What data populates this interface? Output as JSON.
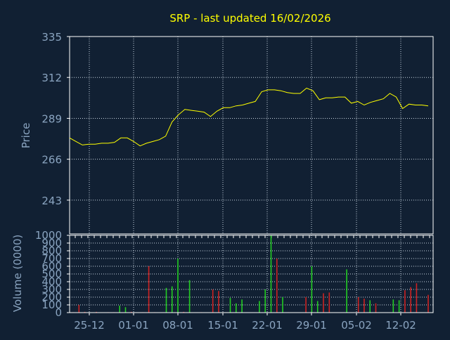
{
  "colors": {
    "background": "#112033",
    "grid": "#c8d4e0",
    "axis": "#ffffff",
    "title": "#ffff00",
    "label": "#8aa4c0",
    "price_line": "#ffff00",
    "volume_up": "#22cc22",
    "volume_down": "#cc2222"
  },
  "chart_data": [
    {
      "type": "line",
      "title": "SRP - last updated 16/02/2026",
      "ylabel": "Price",
      "xlabel": "",
      "ylim": [
        224,
        335
      ],
      "yticks": [
        335,
        312,
        289,
        266,
        243
      ],
      "x_tick_labels": [
        "25-12",
        "01-01",
        "08-01",
        "15-01",
        "22-01",
        "29-01",
        "05-02",
        "12-02"
      ],
      "grid": true,
      "series": [
        {
          "values": [
            278,
            276,
            274,
            274.5,
            274.5,
            275,
            275,
            275.5,
            278,
            278,
            276,
            273.5,
            275,
            276,
            277,
            279,
            287,
            291,
            294,
            293.5,
            293,
            292.5,
            290,
            293,
            295,
            295,
            296,
            296.5,
            297.5,
            298.5,
            304,
            305,
            305,
            304.5,
            303.5,
            303,
            303,
            306,
            304.5,
            299.5,
            300.5,
            300.5,
            301,
            301,
            297.5,
            298.5,
            296.5,
            298,
            299,
            300,
            303,
            301,
            294.5,
            297,
            296.5,
            296.5,
            296
          ]
        }
      ]
    },
    {
      "type": "bar",
      "ylabel": "Volume (0000)",
      "ylim": [
        0,
        1000
      ],
      "yticks": [
        1000,
        900,
        800,
        700,
        600,
        500,
        400,
        300,
        200,
        100,
        0
      ],
      "grid": true,
      "series": [
        {
          "values": [
            5,
            100,
            10,
            0,
            10,
            0,
            5,
            5,
            90,
            70,
            10,
            0,
            5,
            600,
            5,
            0,
            320,
            340,
            700,
            10,
            420,
            0,
            5,
            0,
            300,
            280,
            0,
            190,
            120,
            170,
            0,
            0,
            150,
            300,
            1000,
            700,
            200,
            5,
            0,
            0,
            200,
            600,
            150,
            250,
            260,
            0,
            0,
            560,
            0,
            200,
            180,
            160,
            120,
            0,
            0,
            170,
            160,
            290,
            330,
            380,
            0,
            230
          ],
          "direction": [
            "d",
            "d",
            "d",
            "u",
            "d",
            "u",
            "d",
            "d",
            "u",
            "u",
            "d",
            "u",
            "d",
            "d",
            "d",
            "u",
            "u",
            "u",
            "u",
            "d",
            "u",
            "u",
            "d",
            "u",
            "d",
            "d",
            "u",
            "u",
            "u",
            "u",
            "u",
            "u",
            "u",
            "u",
            "u",
            "d",
            "u",
            "d",
            "u",
            "u",
            "d",
            "u",
            "u",
            "d",
            "d",
            "u",
            "u",
            "u",
            "u",
            "d",
            "d",
            "u",
            "d",
            "u",
            "u",
            "u",
            "u",
            "d",
            "d",
            "d",
            "u",
            "d"
          ]
        }
      ]
    }
  ]
}
